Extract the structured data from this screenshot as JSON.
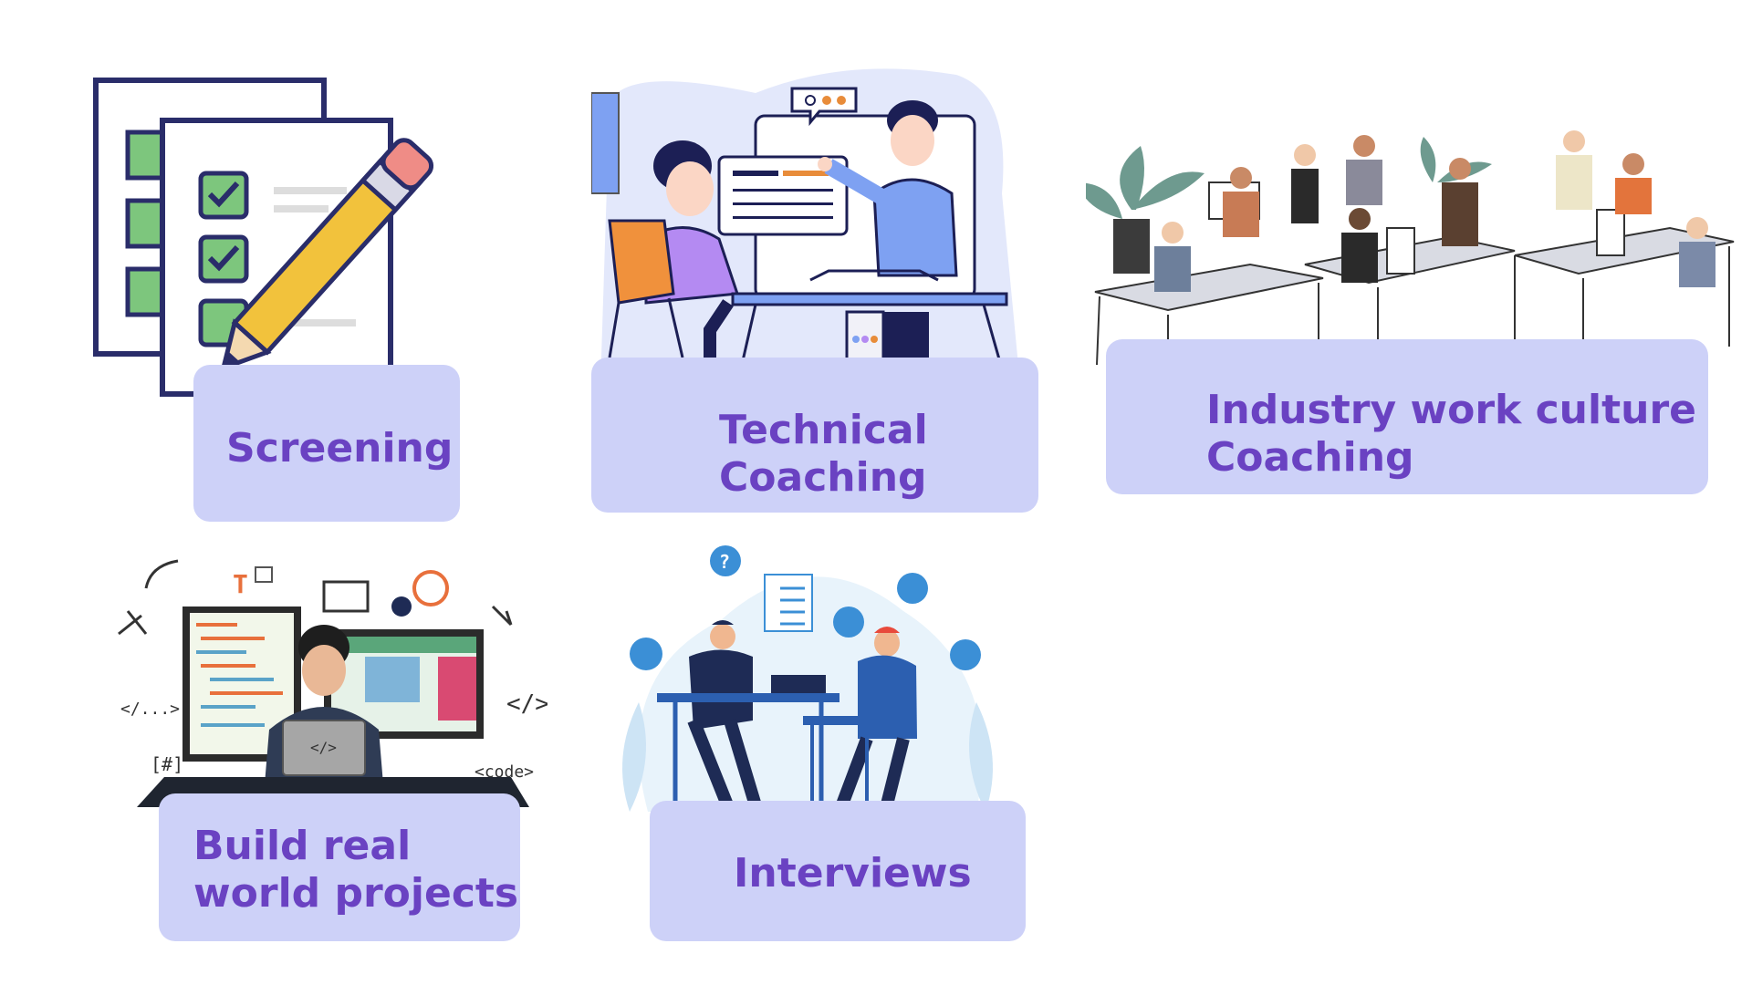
{
  "cards": [
    {
      "id": "screening",
      "label": "Screening"
    },
    {
      "id": "technical",
      "label": "Technical\nCoaching"
    },
    {
      "id": "culture",
      "label": "Industry work culture\nCoaching"
    },
    {
      "id": "projects",
      "label": "Build real\nworld projects"
    },
    {
      "id": "interviews",
      "label": "Interviews"
    }
  ],
  "code_snippets": {
    "ellipsis_tag": "</...>",
    "close_tag": "</>",
    "hash": "[#]",
    "code_tag": "<code>",
    "laptop_tag": "</>",
    "t_letter": "T",
    "question": "?"
  },
  "colors": {
    "label_bg": "#cdd1f8",
    "label_text": "#6a42c2",
    "navy": "#1e2158",
    "check_green": "#7dc67d",
    "pencil_yellow": "#f2c23c"
  }
}
